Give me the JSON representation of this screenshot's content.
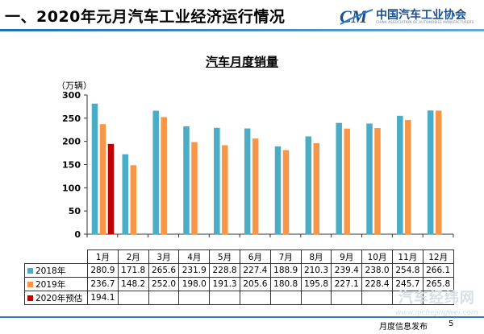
{
  "header": {
    "title": "一、2020年元月汽车工业经济运行情况",
    "logo_text": "中国汽车工业协会",
    "logo_subtext": "CHINA ASSOCIATION OF AUTOMOBILE MANUFACTURERS",
    "logo_mark": "CM"
  },
  "chart_data": {
    "type": "bar",
    "title": "汽车月度销量",
    "ylabel": "（万辆）",
    "xlabel": "",
    "ylim": [
      0,
      300
    ],
    "yticks": [
      0,
      50,
      100,
      150,
      200,
      250,
      300
    ],
    "grid": false,
    "legend": "table-below",
    "categories": [
      "1月",
      "2月",
      "3月",
      "4月",
      "5月",
      "6月",
      "7月",
      "8月",
      "9月",
      "10月",
      "11月",
      "12月"
    ],
    "series": [
      {
        "name": "2018年",
        "color": "#4bacc6",
        "values": [
          280.9,
          171.8,
          265.6,
          231.9,
          228.8,
          227.4,
          188.9,
          210.3,
          239.4,
          238.0,
          254.8,
          266.1
        ],
        "labels": [
          "280.9",
          "171.8",
          "265.6",
          "231.9",
          "228.8",
          "227.4",
          "188.9",
          "210.3",
          "239.4",
          "238.0",
          "254.8",
          "266.1"
        ]
      },
      {
        "name": "2019年",
        "color": "#f79646",
        "values": [
          236.7,
          148.2,
          252.0,
          198.0,
          191.3,
          205.6,
          180.8,
          195.8,
          227.1,
          228.4,
          245.7,
          265.8
        ],
        "labels": [
          "236.7",
          "148.2",
          "252.0",
          "198.0",
          "191.3",
          "205.6",
          "180.8",
          "195.8",
          "227.1",
          "228.4",
          "245.7",
          "265.8"
        ]
      },
      {
        "name": "2020年预估",
        "color": "#c00000",
        "values": [
          194.1,
          null,
          null,
          null,
          null,
          null,
          null,
          null,
          null,
          null,
          null,
          null
        ],
        "labels": [
          "194.1",
          "",
          "",
          "",
          "",
          "",
          "",
          "",
          "",
          "",
          "",
          ""
        ]
      }
    ]
  },
  "watermark": {
    "main": "汽车经纬网",
    "url": "www.qichejingwei.com"
  },
  "footer": {
    "text": "月度信息发布",
    "page_number": "5"
  }
}
